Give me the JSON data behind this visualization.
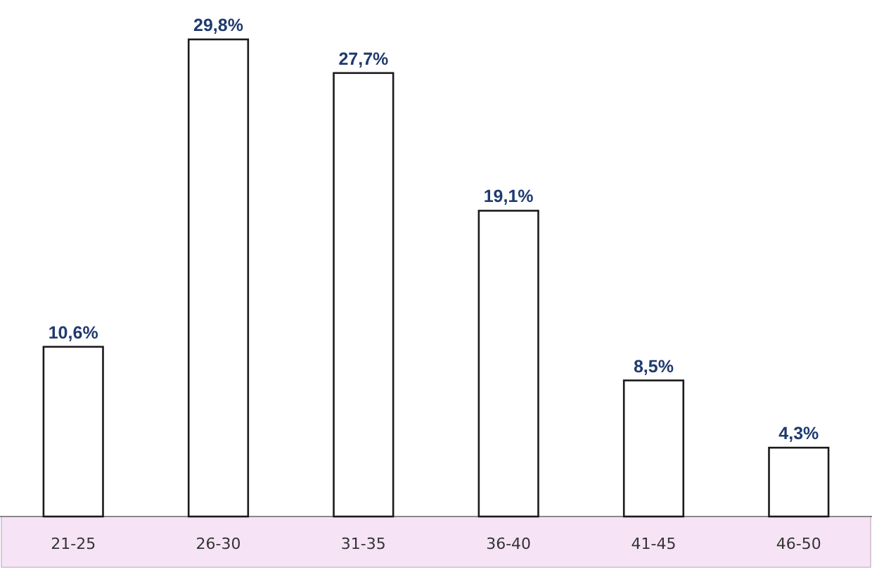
{
  "chart_data": {
    "type": "bar",
    "categories": [
      "21-25",
      "26-30",
      "31-35",
      "36-40",
      "41-45",
      "46-50"
    ],
    "values": [
      10.6,
      29.8,
      27.7,
      19.1,
      8.5,
      4.3
    ],
    "value_labels": [
      "10,6%",
      "29,8%",
      "27,7%",
      "19,1%",
      "8,5%",
      "4,3%"
    ],
    "color": "#ffffff"
  }
}
